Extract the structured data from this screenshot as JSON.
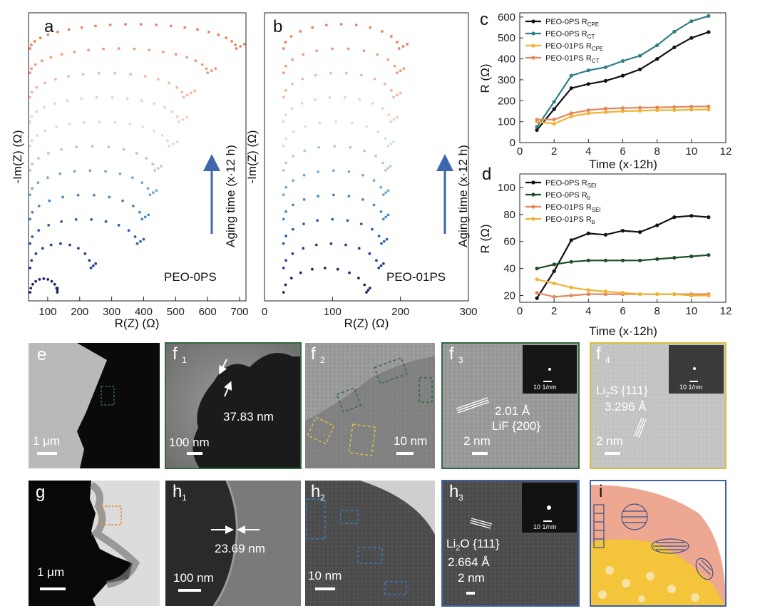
{
  "panel_letters": {
    "a": "a",
    "b": "b",
    "c": "c",
    "d": "d",
    "e": "e",
    "f1": "f",
    "f2": "f",
    "f3": "f",
    "f4": "f",
    "g": "g",
    "h1": "h",
    "h2": "h",
    "h3": "h",
    "i": "i"
  },
  "panel_subscripts": {
    "f1": "1",
    "f2": "2",
    "f3": "3",
    "f4": "4",
    "h1": "1",
    "h2": "2",
    "h3": "3"
  },
  "colors": {
    "black": "#111111",
    "teal": "#2f7f86",
    "dark_green": "#1f4d2a",
    "orange": "#e4875a",
    "yellow": "#f2b233",
    "axis": "#222222",
    "frame_green": "#2e6b3e",
    "frame_yellow": "#d8c23a",
    "frame_blue": "#3a63a8",
    "box_green": "#2e6b3e",
    "box_yellow": "#d8c23a",
    "box_blue": "#3d7bbf",
    "box_orange": "#e08a3a",
    "arrow_blue": "#3e67b0",
    "i_pink": "#eea891",
    "i_yellow": "#f4c43a",
    "i_line": "#3a4f8a"
  },
  "chart_data": [
    {
      "id": "a",
      "type": "scatter",
      "title": "",
      "xlabel": "R(Z) (Ω)",
      "ylabel": "-Im(Z) (Ω)",
      "xlim": [
        40,
        720
      ],
      "xticks": [
        100,
        200,
        300,
        400,
        500,
        600,
        700
      ],
      "annotation": "PEO-0PS",
      "arrow_label": "Aging time (x·12 h)",
      "palette": [
        "#1a2a66",
        "#23408f",
        "#2d5fa8",
        "#4a86be",
        "#78a9d0",
        "#a9c8e2",
        "#cfe0ec",
        "#f2cfc1",
        "#f0b69d",
        "#ec9c7d",
        "#e8835f"
      ],
      "series": [
        {
          "name": "1",
          "x_start": 45,
          "semicircle_end": 130,
          "tail_end": 130
        },
        {
          "name": "2",
          "x_start": 45,
          "semicircle_end": 235,
          "tail_end": 250
        },
        {
          "name": "3",
          "x_start": 45,
          "semicircle_end": 380,
          "tail_end": 400
        },
        {
          "name": "4",
          "x_start": 45,
          "semicircle_end": 395,
          "tail_end": 415
        },
        {
          "name": "5",
          "x_start": 45,
          "semicircle_end": 420,
          "tail_end": 440
        },
        {
          "name": "6",
          "x_start": 45,
          "semicircle_end": 435,
          "tail_end": 455
        },
        {
          "name": "7",
          "x_start": 45,
          "semicircle_end": 480,
          "tail_end": 505
        },
        {
          "name": "8",
          "x_start": 45,
          "semicircle_end": 510,
          "tail_end": 535
        },
        {
          "name": "9",
          "x_start": 45,
          "semicircle_end": 525,
          "tail_end": 560
        },
        {
          "name": "10",
          "x_start": 45,
          "semicircle_end": 600,
          "tail_end": 625
        },
        {
          "name": "11",
          "x_start": 45,
          "semicircle_end": 690,
          "tail_end": 715
        }
      ]
    },
    {
      "id": "b",
      "type": "scatter",
      "xlabel": "R(Z) (Ω)",
      "ylabel": "-Im(Z) (Ω)",
      "xlim": [
        0,
        300
      ],
      "xticks": [
        0,
        100,
        200,
        300
      ],
      "annotation": "PEO-01PS",
      "arrow_label": "Aging time (x·12 h)",
      "palette": [
        "#1a2a66",
        "#23408f",
        "#2d5fa8",
        "#4a86be",
        "#78a9d0",
        "#a9c8e2",
        "#cfe0ec",
        "#f2cfc1",
        "#f0b69d",
        "#ec9c7d",
        "#e8835f"
      ],
      "series": [
        {
          "name": "1",
          "x_start": 28,
          "semicircle_end": 150,
          "tail_end": 155
        },
        {
          "name": "2",
          "x_start": 28,
          "semicircle_end": 168,
          "tail_end": 175
        },
        {
          "name": "3",
          "x_start": 28,
          "semicircle_end": 172,
          "tail_end": 180
        },
        {
          "name": "4",
          "x_start": 28,
          "semicircle_end": 175,
          "tail_end": 182
        },
        {
          "name": "5",
          "x_start": 28,
          "semicircle_end": 175,
          "tail_end": 182
        },
        {
          "name": "6",
          "x_start": 28,
          "semicircle_end": 178,
          "tail_end": 185
        },
        {
          "name": "7",
          "x_start": 28,
          "semicircle_end": 182,
          "tail_end": 190
        },
        {
          "name": "8",
          "x_start": 28,
          "semicircle_end": 186,
          "tail_end": 195
        },
        {
          "name": "9",
          "x_start": 28,
          "semicircle_end": 190,
          "tail_end": 200
        },
        {
          "name": "10",
          "x_start": 28,
          "semicircle_end": 195,
          "tail_end": 205
        },
        {
          "name": "11",
          "x_start": 28,
          "semicircle_end": 198,
          "tail_end": 210
        }
      ]
    },
    {
      "id": "c",
      "type": "line",
      "xlabel": "Time (x·12h)",
      "ylabel": "R (Ω)",
      "xlim": [
        0,
        12
      ],
      "ylim": [
        0,
        620
      ],
      "xticks": [
        0,
        2,
        4,
        6,
        8,
        10,
        12
      ],
      "yticks": [
        0,
        100,
        200,
        300,
        400,
        500,
        600
      ],
      "legend_position": "top-left",
      "x": [
        1,
        2,
        3,
        4,
        5,
        6,
        7,
        8,
        9,
        10,
        11
      ],
      "series": [
        {
          "name": "PEO-0PS R",
          "sub": "CPE",
          "color": "#111111",
          "values": [
            60,
            160,
            260,
            280,
            295,
            320,
            350,
            400,
            455,
            500,
            528
          ]
        },
        {
          "name": "PEO-0PS R",
          "sub": "CT",
          "color": "#2f7f86",
          "values": [
            75,
            195,
            320,
            345,
            360,
            390,
            415,
            465,
            530,
            580,
            605
          ]
        },
        {
          "name": "PEO-01PS R",
          "sub": "CPE",
          "color": "#f2b233",
          "values": [
            100,
            90,
            125,
            140,
            145,
            150,
            152,
            155,
            155,
            157,
            158
          ]
        },
        {
          "name": "PEO-01PS R",
          "sub": "CT",
          "color": "#e4875a",
          "values": [
            110,
            110,
            140,
            155,
            162,
            165,
            167,
            168,
            170,
            172,
            173
          ]
        }
      ]
    },
    {
      "id": "d",
      "type": "line",
      "xlabel": "Time (x·12h)",
      "ylabel": "R (Ω)",
      "xlim": [
        0,
        12
      ],
      "ylim": [
        15,
        110
      ],
      "xticks": [
        0,
        2,
        4,
        6,
        8,
        10,
        12
      ],
      "yticks": [
        20,
        40,
        60,
        80,
        100
      ],
      "legend_position": "top-left",
      "x": [
        1,
        2,
        3,
        4,
        5,
        6,
        7,
        8,
        9,
        10,
        11
      ],
      "series": [
        {
          "name": "PEO-0PS R",
          "sub": "SEI",
          "color": "#111111",
          "values": [
            18,
            38,
            61,
            66,
            65,
            68,
            67,
            72,
            78,
            79,
            78
          ]
        },
        {
          "name": "PEO-0PS R",
          "sub": "b",
          "color": "#1f4d2a",
          "values": [
            40,
            43,
            45,
            46,
            46,
            46,
            46,
            47,
            48,
            49,
            50
          ]
        },
        {
          "name": "PEO-01PS R",
          "sub": "SEI",
          "color": "#e4875a",
          "values": [
            22,
            19,
            20,
            21,
            21,
            21,
            21,
            21,
            21,
            21,
            21
          ]
        },
        {
          "name": "PEO-01PS R",
          "sub": "b",
          "color": "#f2b233",
          "values": [
            32,
            29,
            26,
            24,
            23,
            22,
            21,
            21,
            21,
            20,
            20
          ]
        }
      ]
    }
  ],
  "micrographs": {
    "e": {
      "scale": "1 μm"
    },
    "f1": {
      "scale": "100 nm",
      "measure": "37.83 nm"
    },
    "f2": {
      "scale": "10 nm"
    },
    "f3": {
      "scale": "2 nm",
      "d_spacing": "2.01 Å",
      "phase": "LiF {200}",
      "fft_scale": "10 1/nm"
    },
    "f4": {
      "scale": "2 nm",
      "phase_base": "Li",
      "phase_sub": "2",
      "phase_rest": "S {111}",
      "d_spacing": "3.296 Å",
      "fft_scale": "10 1/nm"
    },
    "g": {
      "scale": "1 μm"
    },
    "h1": {
      "scale": "100 nm",
      "measure": "23.69 nm"
    },
    "h2": {
      "scale": "10 nm"
    },
    "h3": {
      "scale": "2 nm",
      "phase_base": "Li",
      "phase_sub": "2",
      "phase_rest": "O {111}",
      "d_spacing": "2.664 Å",
      "fft_scale": "10 1/nm"
    }
  }
}
